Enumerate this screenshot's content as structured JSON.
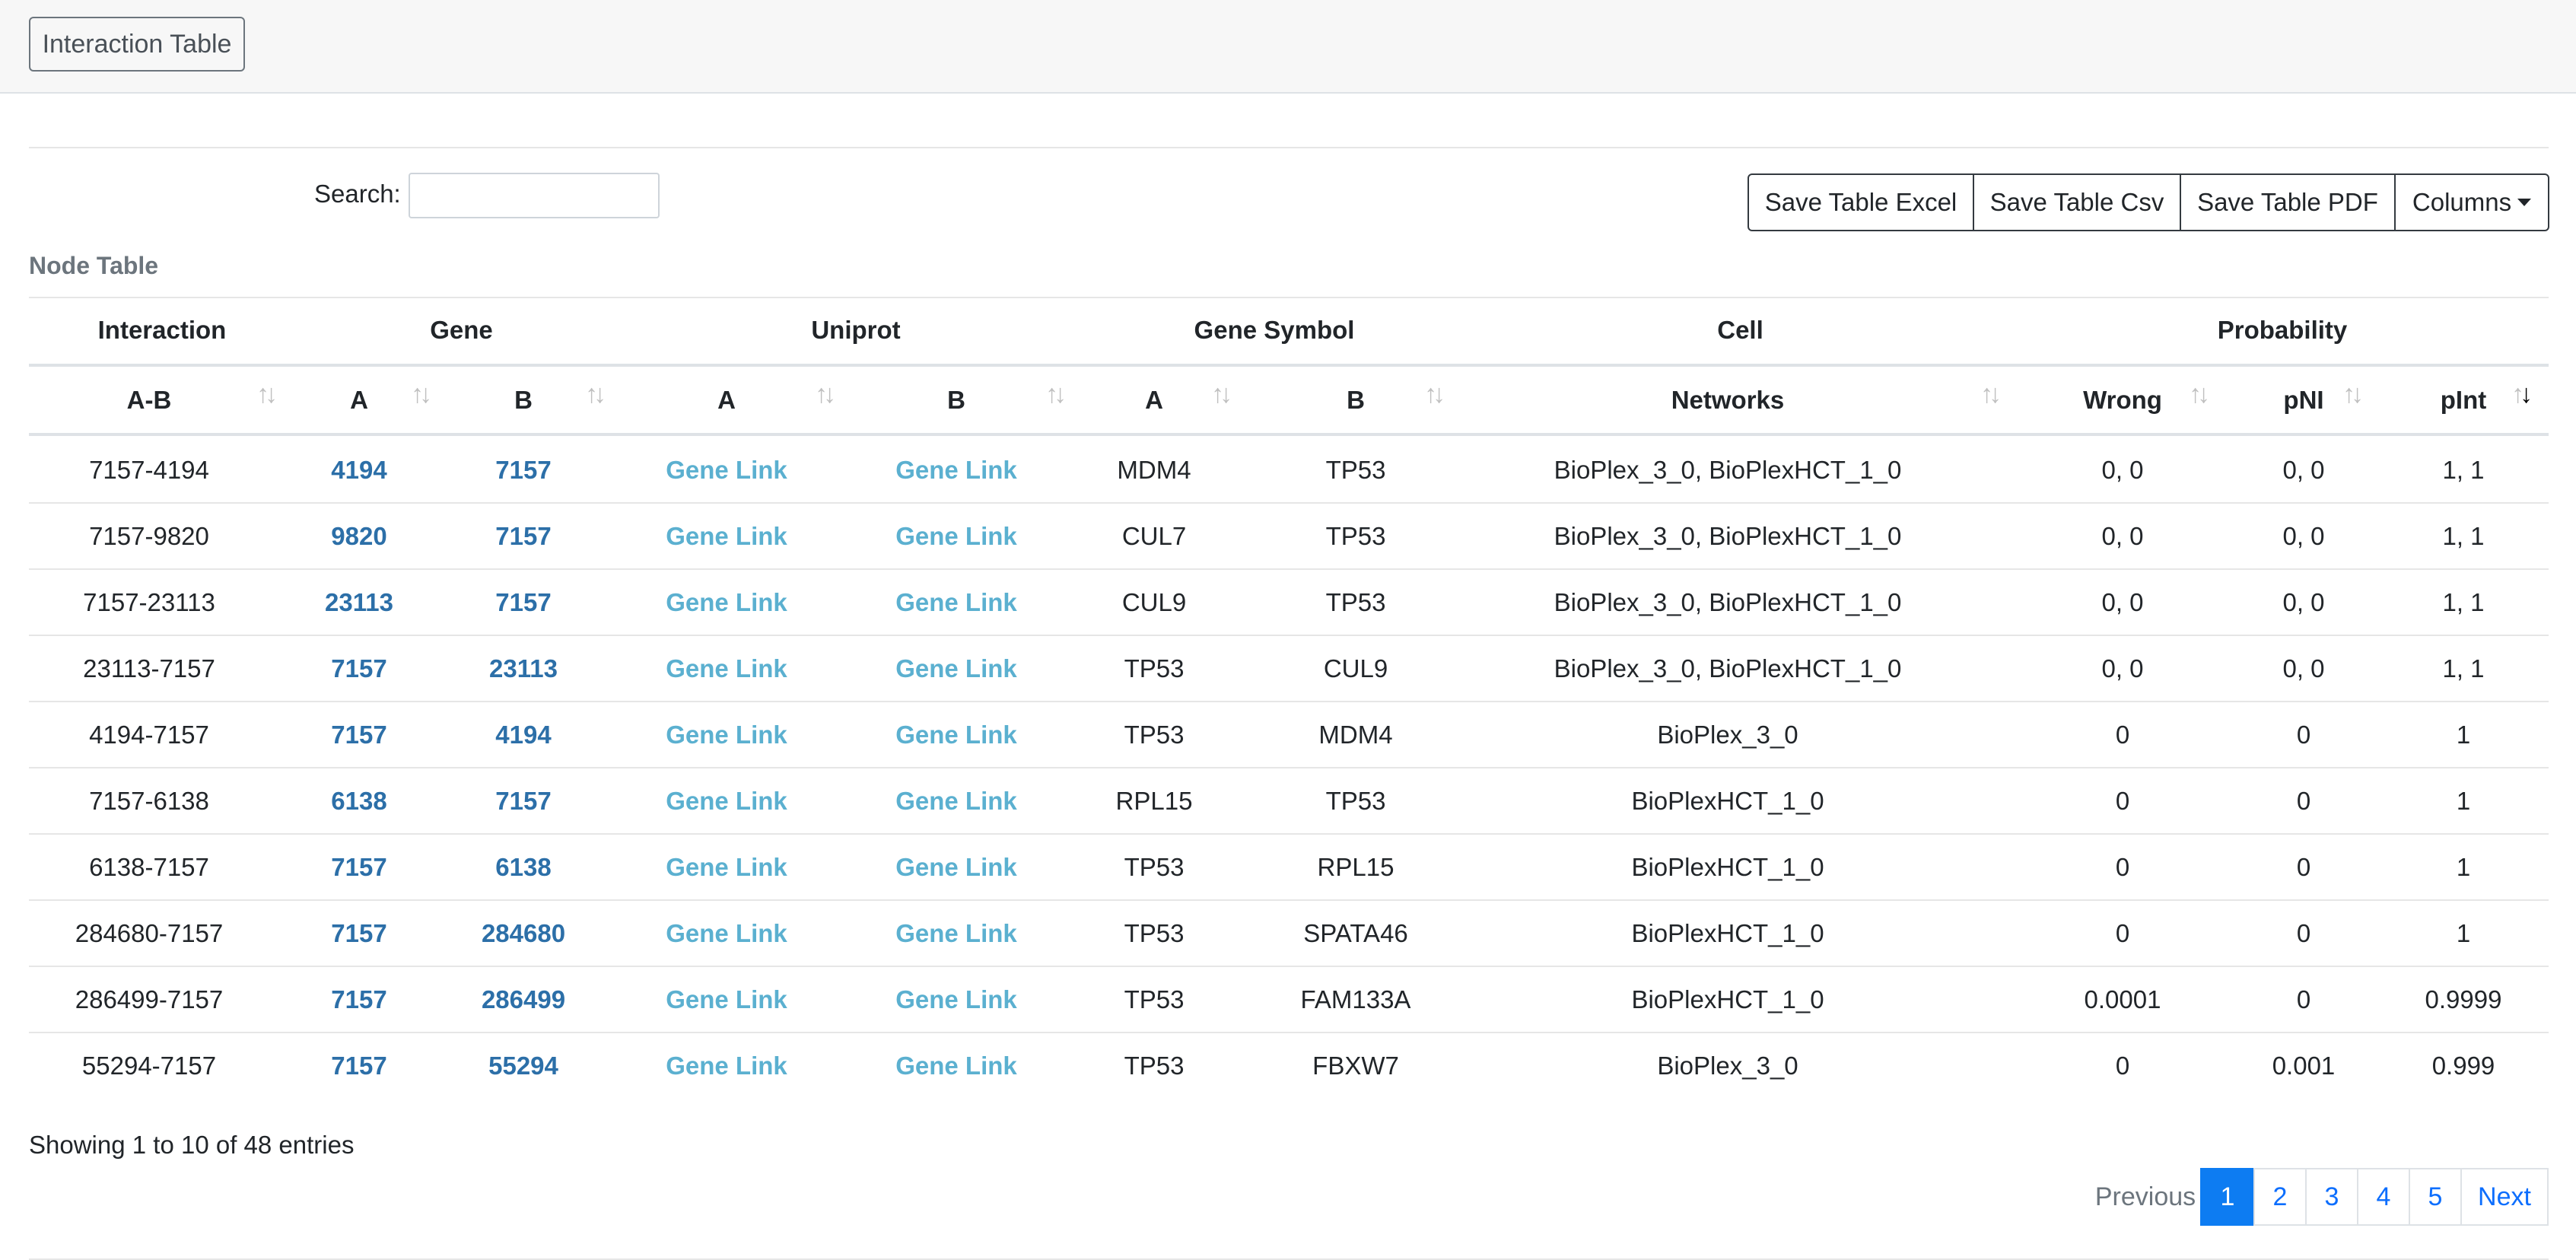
{
  "header": {
    "tab_label": "Interaction Table"
  },
  "toolbar": {
    "search_label": "Search:",
    "search_value": "",
    "buttons": [
      "Save Table Excel",
      "Save Table Csv",
      "Save Table PDF",
      "Columns"
    ]
  },
  "section_title": "Node Table",
  "table": {
    "group_headers": [
      "Interaction",
      "Gene",
      "Uniprot",
      "Gene Symbol",
      "Cell",
      "Probability"
    ],
    "columns": [
      "A-B",
      "A",
      "B",
      "A",
      "B",
      "A",
      "B",
      "Networks",
      "Wrong",
      "pNI",
      "pInt"
    ],
    "sorted_column": "pInt",
    "sort_direction": "descending",
    "rows": [
      [
        "7157-4194",
        "4194",
        "7157",
        "Gene Link",
        "Gene Link",
        "MDM4",
        "TP53",
        "BioPlex_3_0, BioPlexHCT_1_0",
        "0, 0",
        "0, 0",
        "1, 1"
      ],
      [
        "7157-9820",
        "9820",
        "7157",
        "Gene Link",
        "Gene Link",
        "CUL7",
        "TP53",
        "BioPlex_3_0, BioPlexHCT_1_0",
        "0, 0",
        "0, 0",
        "1, 1"
      ],
      [
        "7157-23113",
        "23113",
        "7157",
        "Gene Link",
        "Gene Link",
        "CUL9",
        "TP53",
        "BioPlex_3_0, BioPlexHCT_1_0",
        "0, 0",
        "0, 0",
        "1, 1"
      ],
      [
        "23113-7157",
        "7157",
        "23113",
        "Gene Link",
        "Gene Link",
        "TP53",
        "CUL9",
        "BioPlex_3_0, BioPlexHCT_1_0",
        "0, 0",
        "0, 0",
        "1, 1"
      ],
      [
        "4194-7157",
        "7157",
        "4194",
        "Gene Link",
        "Gene Link",
        "TP53",
        "MDM4",
        "BioPlex_3_0",
        "0",
        "0",
        "1"
      ],
      [
        "7157-6138",
        "6138",
        "7157",
        "Gene Link",
        "Gene Link",
        "RPL15",
        "TP53",
        "BioPlexHCT_1_0",
        "0",
        "0",
        "1"
      ],
      [
        "6138-7157",
        "7157",
        "6138",
        "Gene Link",
        "Gene Link",
        "TP53",
        "RPL15",
        "BioPlexHCT_1_0",
        "0",
        "0",
        "1"
      ],
      [
        "284680-7157",
        "7157",
        "284680",
        "Gene Link",
        "Gene Link",
        "TP53",
        "SPATA46",
        "BioPlexHCT_1_0",
        "0",
        "0",
        "1"
      ],
      [
        "286499-7157",
        "7157",
        "286499",
        "Gene Link",
        "Gene Link",
        "TP53",
        "FAM133A",
        "BioPlexHCT_1_0",
        "0.0001",
        "0",
        "0.9999"
      ],
      [
        "55294-7157",
        "7157",
        "55294",
        "Gene Link",
        "Gene Link",
        "TP53",
        "FBXW7",
        "BioPlex_3_0",
        "0",
        "0.001",
        "0.999"
      ]
    ]
  },
  "footer": {
    "info": "Showing 1 to 10 of 48 entries",
    "prev_label": "Previous",
    "pages": [
      "1",
      "2",
      "3",
      "4",
      "5"
    ],
    "current_page": "1",
    "next_label": "Next"
  },
  "colors": {
    "gene_link": "#2c6fa8",
    "uniprot_link": "#5bb0d0",
    "active_page": "#0d7cf2"
  }
}
